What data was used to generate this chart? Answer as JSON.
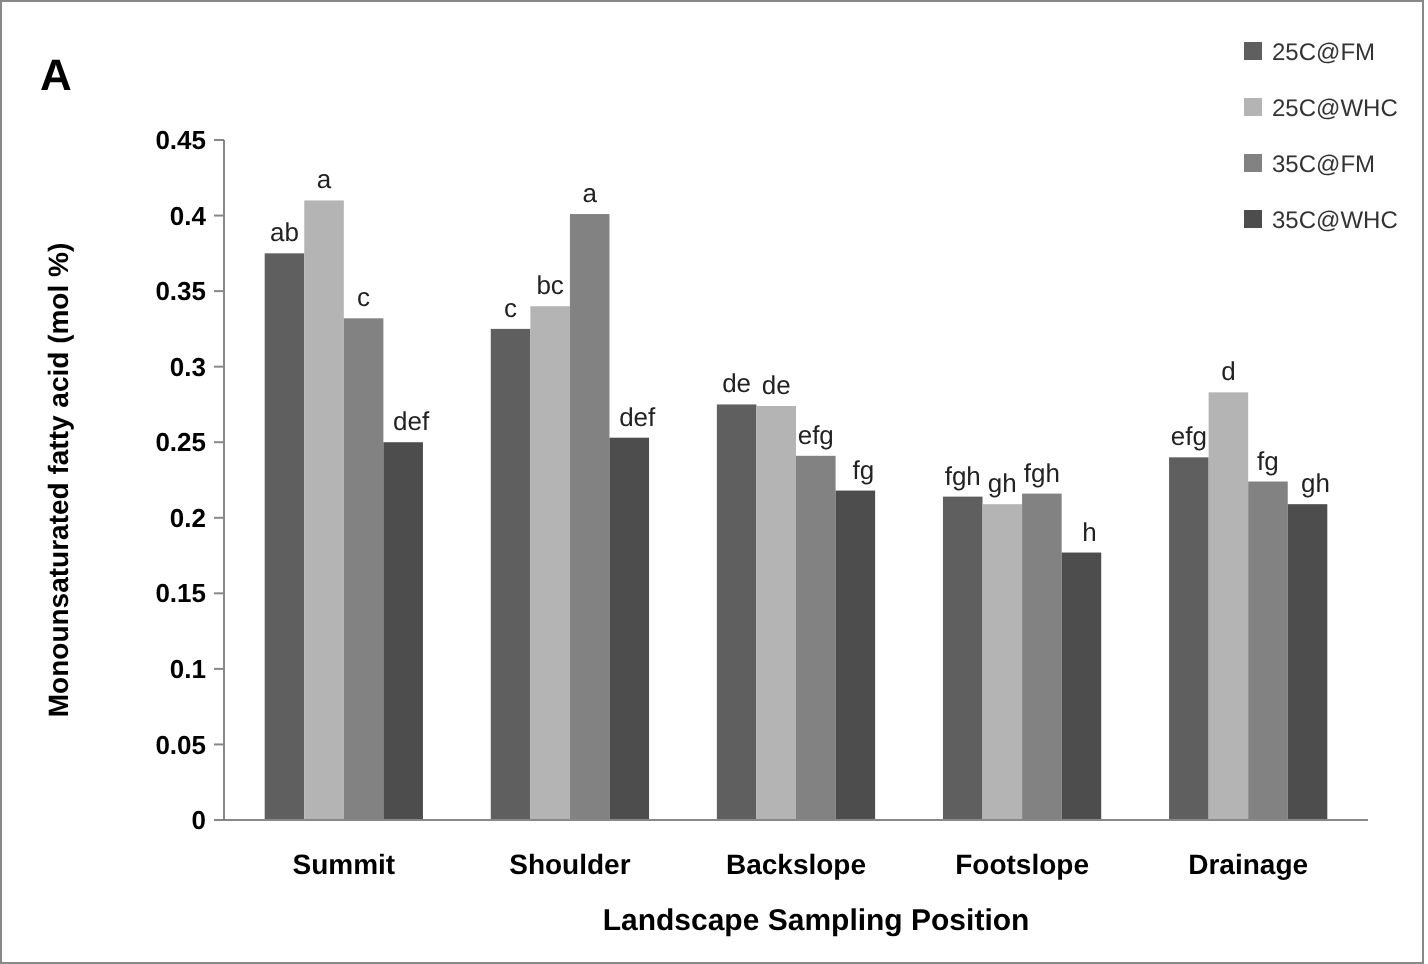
{
  "chart_data": {
    "type": "bar",
    "title": "A",
    "xlabel": "Landscape Sampling Position",
    "ylabel": "Monounsaturated fatty acid (mol %)",
    "categories": [
      "Summit",
      "Shoulder",
      "Backslope",
      "Footslope",
      "Drainage"
    ],
    "series": [
      {
        "name": "25C@FM",
        "color": "#5f5f5f",
        "values": [
          0.375,
          0.325,
          0.275,
          0.214,
          0.24
        ],
        "value_labels": [
          "ab",
          "c",
          "de",
          "fgh",
          "efg"
        ]
      },
      {
        "name": "25C@WHC",
        "color": "#b4b4b4",
        "values": [
          0.41,
          0.34,
          0.274,
          0.209,
          0.283
        ],
        "value_labels": [
          "a",
          "bc",
          "de",
          "gh",
          "d"
        ]
      },
      {
        "name": "35C@FM",
        "color": "#828282",
        "values": [
          0.332,
          0.401,
          0.241,
          0.216,
          0.224
        ],
        "value_labels": [
          "c",
          "a",
          "efg",
          "fgh",
          "fg"
        ]
      },
      {
        "name": "35C@WHC",
        "color": "#4d4d4d",
        "values": [
          0.25,
          0.253,
          0.218,
          0.177,
          0.209
        ],
        "value_labels": [
          "def",
          "def",
          "fg",
          "h",
          "gh"
        ]
      }
    ],
    "ylim": [
      0,
      0.45
    ],
    "yticks": [
      0,
      0.05,
      0.1,
      0.15,
      0.2,
      0.25,
      0.3,
      0.35,
      0.4,
      0.45
    ],
    "grid": false,
    "legend": "top right"
  }
}
